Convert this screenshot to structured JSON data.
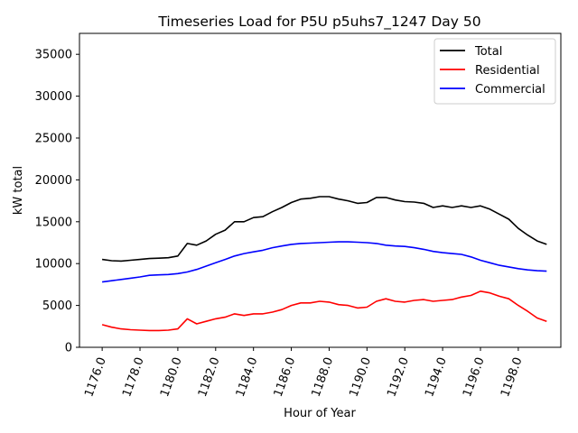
{
  "chart_data": {
    "type": "line",
    "title": "Timeseries Load for P5U p5uhs7_1247  Day 50",
    "xlabel": "Hour of Year",
    "ylabel": "kW total",
    "xlim": [
      1174.8,
      1200.25
    ],
    "ylim": [
      0,
      37500
    ],
    "x_ticks": [
      1176,
      1178,
      1180,
      1182,
      1184,
      1186,
      1188,
      1190,
      1192,
      1194,
      1196,
      1198
    ],
    "x_tick_labels": [
      "1176.0",
      "1178.0",
      "1180.0",
      "1182.0",
      "1184.0",
      "1186.0",
      "1188.0",
      "1190.0",
      "1192.0",
      "1194.0",
      "1196.0",
      "1198.0"
    ],
    "y_ticks": [
      0,
      5000,
      10000,
      15000,
      20000,
      25000,
      30000,
      35000
    ],
    "y_tick_labels": [
      "0",
      "5000",
      "10000",
      "15000",
      "20000",
      "25000",
      "30000",
      "35000"
    ],
    "legend_position": "top-right",
    "x": [
      1176,
      1176.5,
      1177,
      1177.5,
      1178,
      1178.5,
      1179,
      1179.5,
      1180,
      1180.5,
      1181,
      1181.5,
      1182,
      1182.5,
      1183,
      1183.5,
      1184,
      1184.5,
      1185,
      1185.5,
      1186,
      1186.5,
      1187,
      1187.5,
      1188,
      1188.5,
      1189,
      1189.5,
      1190,
      1190.5,
      1191,
      1191.5,
      1192,
      1192.5,
      1193,
      1193.5,
      1194,
      1194.5,
      1195,
      1195.5,
      1196,
      1196.5,
      1197,
      1197.5,
      1198,
      1198.5,
      1199,
      1199.5
    ],
    "series": [
      {
        "name": "Total",
        "color": "#000000",
        "values": [
          10500,
          10350,
          10300,
          10400,
          10500,
          10600,
          10650,
          10700,
          10900,
          12400,
          12200,
          12700,
          13500,
          14000,
          15000,
          15000,
          15500,
          15600,
          16200,
          16700,
          17300,
          17700,
          17800,
          18000,
          18000,
          17700,
          17500,
          17200,
          17300,
          17900,
          17900,
          17600,
          17400,
          17350,
          17200,
          16700,
          16900,
          16700,
          16900,
          16700,
          16900,
          16500,
          15900,
          15300,
          14200,
          13400,
          12700,
          12300
        ]
      },
      {
        "name": "Residential",
        "color": "#ff0000",
        "values": [
          2700,
          2400,
          2200,
          2100,
          2050,
          2000,
          2000,
          2050,
          2200,
          3400,
          2800,
          3100,
          3400,
          3600,
          4000,
          3800,
          4000,
          4000,
          4200,
          4500,
          5000,
          5300,
          5300,
          5500,
          5400,
          5100,
          5000,
          4700,
          4800,
          5500,
          5800,
          5500,
          5400,
          5600,
          5700,
          5500,
          5600,
          5700,
          6000,
          6200,
          6700,
          6500,
          6100,
          5800,
          5000,
          4300,
          3500,
          3100
        ]
      },
      {
        "name": "Commercial",
        "color": "#0000ff",
        "values": [
          7800,
          7950,
          8100,
          8250,
          8400,
          8600,
          8650,
          8700,
          8800,
          9000,
          9300,
          9700,
          10100,
          10500,
          10900,
          11200,
          11400,
          11600,
          11900,
          12100,
          12300,
          12400,
          12450,
          12500,
          12550,
          12600,
          12600,
          12550,
          12500,
          12400,
          12200,
          12100,
          12050,
          11900,
          11700,
          11450,
          11300,
          11200,
          11100,
          10800,
          10400,
          10100,
          9800,
          9600,
          9400,
          9250,
          9150,
          9100
        ]
      }
    ]
  }
}
